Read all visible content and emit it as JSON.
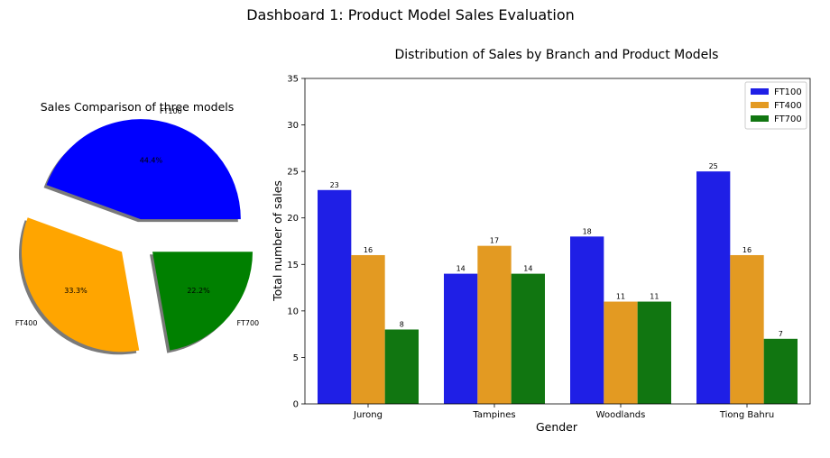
{
  "dashboard_title": "Dashboard 1: Product Model Sales Evaluation",
  "chart_data": [
    {
      "type": "pie",
      "title": "Sales Comparison of three models",
      "labels": [
        "FT100",
        "FT400",
        "FT700"
      ],
      "values": [
        44.4,
        33.3,
        22.2
      ],
      "value_labels": [
        "44.4%",
        "33.3%",
        "22.2%"
      ],
      "colors": [
        "#0000ff",
        "#ffa500",
        "#008000"
      ],
      "exploded": true,
      "shadow": true
    },
    {
      "type": "bar",
      "title": "Distribution of Sales by Branch and Product Models",
      "xlabel": "Gender",
      "ylabel": "Total number of sales",
      "categories": [
        "Jurong",
        "Tampines",
        "Woodlands",
        "Tiong Bahru"
      ],
      "series": [
        {
          "name": "FT100",
          "values": [
            23,
            14,
            18,
            25
          ],
          "color": "#1f1fe6"
        },
        {
          "name": "FT400",
          "values": [
            16,
            17,
            11,
            16
          ],
          "color": "#e39a22"
        },
        {
          "name": "FT700",
          "values": [
            8,
            14,
            11,
            7
          ],
          "color": "#117611"
        }
      ],
      "ylim": [
        0,
        35
      ],
      "yticks": [
        0,
        5,
        10,
        15,
        20,
        25,
        30,
        35
      ],
      "legend_position": "top-right",
      "grid": false
    }
  ]
}
